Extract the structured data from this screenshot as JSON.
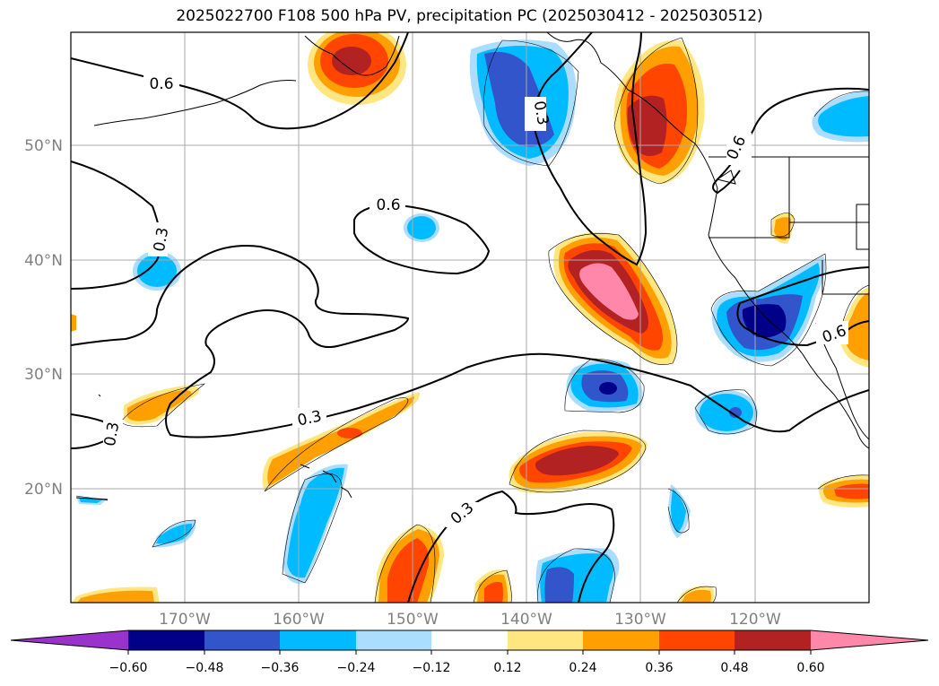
{
  "title": "2025022700 F108 500 hPa PV, precipitation PC (2025030412 - 2025030512)",
  "map": {
    "lat_labels": [
      "50°N",
      "40°N",
      "30°N",
      "20°N"
    ],
    "lon_labels": [
      "170°W",
      "160°W",
      "150°W",
      "140°W",
      "130°W",
      "120°W"
    ],
    "contour_labels": [
      "0.6",
      "0.3",
      "0.3",
      "0.6",
      "0.3",
      "0.3",
      "0.3",
      "0.6",
      "0.6"
    ]
  },
  "colorbar": {
    "ticks": [
      "−0.60",
      "−0.48",
      "−0.36",
      "−0.24",
      "−0.12",
      "0.12",
      "0.24",
      "0.36",
      "0.48",
      "0.60"
    ],
    "colors": [
      "#9933cc",
      "#000088",
      "#3355cc",
      "#00bbff",
      "#aaddff",
      "#ffffff",
      "#ffe680",
      "#ffa000",
      "#ff4500",
      "#b22222",
      "#ff88aa"
    ]
  }
}
